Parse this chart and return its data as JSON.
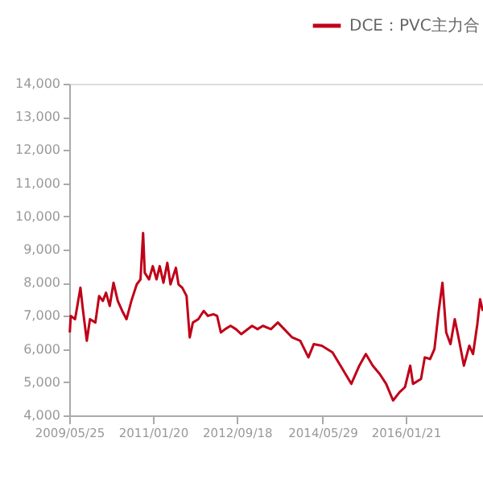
{
  "chart_data": {
    "type": "line",
    "legend": "top right",
    "grid": false,
    "marker": "none",
    "line_style": "solid",
    "xlim": [
      "2009-05-25",
      "2017-08-02"
    ],
    "xticks": [
      {
        "value": "2009-05-25",
        "label": "2009/05/25"
      },
      {
        "value": "2011-01-20",
        "label": "2011/01/20"
      },
      {
        "value": "2012-09-18",
        "label": "2012/09/18"
      },
      {
        "value": "2014-05-29",
        "label": "2014/05/29"
      },
      {
        "value": "2016-01-21",
        "label": "2016/01/21"
      }
    ],
    "ylim": [
      4000,
      14000
    ],
    "yticks": [
      {
        "value": 4000,
        "label": "4,000"
      },
      {
        "value": 5000,
        "label": "5,000"
      },
      {
        "value": 6000,
        "label": "6,000"
      },
      {
        "value": 7000,
        "label": "7,000"
      },
      {
        "value": 8000,
        "label": "8,000"
      },
      {
        "value": 9000,
        "label": "9,000"
      },
      {
        "value": 10000,
        "label": "10,000"
      },
      {
        "value": 11000,
        "label": "11,000"
      },
      {
        "value": 12000,
        "label": "12,000"
      },
      {
        "value": 13000,
        "label": "13,000"
      },
      {
        "value": 14000,
        "label": "14,000"
      }
    ],
    "x": [
      "2009-05-29",
      "2009-06-05",
      "2009-07-06",
      "2009-08-14",
      "2009-09-02",
      "2009-09-29",
      "2009-10-22",
      "2009-11-30",
      "2009-12-27",
      "2010-01-23",
      "2010-02-15",
      "2010-03-14",
      "2010-04-10",
      "2010-05-11",
      "2010-06-12",
      "2010-07-13",
      "2010-08-17",
      "2010-09-25",
      "2010-10-22",
      "2010-11-10",
      "2010-11-22",
      "2010-12-23",
      "2011-01-19",
      "2011-02-15",
      "2011-03-10",
      "2011-04-06",
      "2011-05-04",
      "2011-05-27",
      "2011-07-05",
      "2011-07-24",
      "2011-08-20",
      "2011-09-20",
      "2011-10-13",
      "2011-11-05",
      "2011-12-14",
      "2012-01-22",
      "2012-02-22",
      "2012-04-01",
      "2012-04-28",
      "2012-05-25",
      "2012-06-25",
      "2012-08-03",
      "2012-09-11",
      "2012-10-20",
      "2013-01-06",
      "2013-02-14",
      "2013-03-25",
      "2013-05-22",
      "2013-07-11",
      "2013-08-26",
      "2013-10-23",
      "2013-12-20",
      "2014-02-17",
      "2014-03-28",
      "2014-05-25",
      "2014-08-10",
      "2014-10-07",
      "2014-12-24",
      "2015-02-20",
      "2015-04-08",
      "2015-05-28",
      "2015-07-17",
      "2015-09-02",
      "2015-10-22",
      "2015-12-08",
      "2016-01-16",
      "2016-02-23",
      "2016-03-14",
      "2016-05-11",
      "2016-06-07",
      "2016-07-16",
      "2016-08-16",
      "2016-09-16",
      "2016-10-13",
      "2016-11-09",
      "2016-12-10",
      "2017-01-10",
      "2017-02-06",
      "2017-03-17",
      "2017-04-25",
      "2017-05-22",
      "2017-06-22",
      "2017-07-12",
      "2017-07-31"
    ],
    "series": [
      {
        "name": "DCE：PVC主力合",
        "color": "#c00018",
        "values": [
          6500,
          7000,
          6900,
          7850,
          7150,
          6250,
          6900,
          6800,
          7600,
          7450,
          7700,
          7300,
          8000,
          7450,
          7150,
          6900,
          7450,
          7950,
          8100,
          9500,
          8300,
          8100,
          8500,
          8100,
          8500,
          8000,
          8600,
          7950,
          8450,
          7950,
          7850,
          7600,
          6350,
          6800,
          6900,
          7150,
          7000,
          7050,
          7000,
          6500,
          6600,
          6700,
          6600,
          6450,
          6700,
          6600,
          6700,
          6600,
          6800,
          6600,
          6350,
          6250,
          5750,
          6150,
          6100,
          5900,
          5500,
          4950,
          5500,
          5850,
          5500,
          5250,
          4950,
          4450,
          4700,
          4850,
          5500,
          4950,
          5100,
          5750,
          5700,
          6000,
          7150,
          8000,
          6500,
          6150,
          6900,
          6350,
          5500,
          6100,
          5850,
          6750,
          7500,
          7150
        ]
      }
    ]
  }
}
